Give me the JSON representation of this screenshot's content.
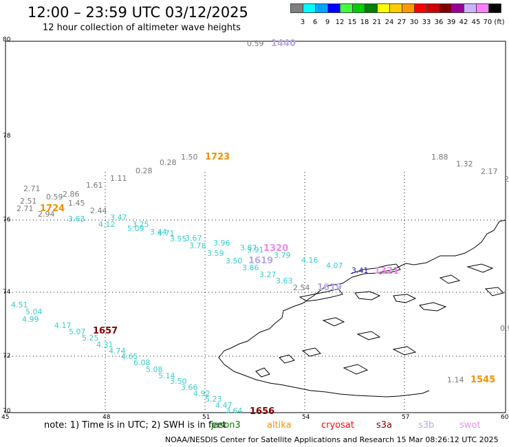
{
  "header": {
    "title": "12:00 – 23:59 UTC 03/12/2025",
    "subtitle": "12 hour collection of altimeter wave heights"
  },
  "legend": {
    "colors": [
      "#808080",
      "#00ffff",
      "#00a5ff",
      "#0000ff",
      "#40ff40",
      "#00cc00",
      "#008000",
      "#ffff00",
      "#ffcc00",
      "#ff9900",
      "#ff0000",
      "#cc0000",
      "#800000",
      "#990099",
      "#ccb3ff",
      "#ff80ff",
      "#000000"
    ],
    "labels": [
      "3",
      "6",
      "9",
      "12",
      "15",
      "18",
      "21",
      "24",
      "27",
      "30",
      "33",
      "36",
      "39",
      "42",
      "45",
      "70 (ft)"
    ]
  },
  "axes": {
    "lon_labels": [
      "45",
      "48",
      "51",
      "54",
      "57",
      "60"
    ],
    "lat_labels": [
      "80",
      "78",
      "76",
      "74",
      "72",
      "70"
    ]
  },
  "points": [
    {
      "t": "0.59",
      "c": "#777777"
    },
    {
      "t": "1440",
      "c": "#b9a8e8",
      "b": 1
    },
    {
      "t": "1.50",
      "c": "#777777"
    },
    {
      "t": "1723",
      "c": "#f09000",
      "b": 1
    },
    {
      "t": "0.28",
      "c": "#777777"
    },
    {
      "t": "0.28",
      "c": "#777777"
    },
    {
      "t": "1.11",
      "c": "#777777"
    },
    {
      "t": "1.61",
      "c": "#777777"
    },
    {
      "t": "2.71",
      "c": "#777777"
    },
    {
      "t": "2.51",
      "c": "#777777"
    },
    {
      "t": "0.59",
      "c": "#777777"
    },
    {
      "t": "2.86",
      "c": "#777777"
    },
    {
      "t": "1.45",
      "c": "#777777"
    },
    {
      "t": "2.71",
      "c": "#777777"
    },
    {
      "t": "1724",
      "c": "#f09000",
      "b": 1
    },
    {
      "t": "2.94",
      "c": "#777777"
    },
    {
      "t": "2.44",
      "c": "#777777"
    },
    {
      "t": "1.88",
      "c": "#777777"
    },
    {
      "t": "1.32",
      "c": "#777777"
    },
    {
      "t": "2.17",
      "c": "#777777"
    },
    {
      "t": "3.63",
      "c": "#33cccc"
    },
    {
      "t": "3.47",
      "c": "#33cccc"
    },
    {
      "t": "4.12",
      "c": "#33cccc"
    },
    {
      "t": "3.25",
      "c": "#33cccc"
    },
    {
      "t": "5.09",
      "c": "#33cccc"
    },
    {
      "t": "3.44",
      "c": "#33cccc"
    },
    {
      "t": "4.71",
      "c": "#33cccc"
    },
    {
      "t": "3.55",
      "c": "#33cccc"
    },
    {
      "t": "3.67",
      "c": "#33cccc"
    },
    {
      "t": "3.78",
      "c": "#33cccc"
    },
    {
      "t": "3.96",
      "c": "#33cccc"
    },
    {
      "t": "3.59",
      "c": "#33cccc"
    },
    {
      "t": "3.87",
      "c": "#33cccc"
    },
    {
      "t": "3.91",
      "c": "#33cccc"
    },
    {
      "t": "1320",
      "c": "#ee88ee",
      "b": 1
    },
    {
      "t": "3.79",
      "c": "#33cccc"
    },
    {
      "t": "3.50",
      "c": "#33cccc"
    },
    {
      "t": "1619",
      "c": "#b9a8e8",
      "b": 1
    },
    {
      "t": "3.86",
      "c": "#33cccc"
    },
    {
      "t": "3.27",
      "c": "#33cccc"
    },
    {
      "t": "3.63",
      "c": "#33cccc"
    },
    {
      "t": "4.16",
      "c": "#33cccc"
    },
    {
      "t": "4.07",
      "c": "#33cccc"
    },
    {
      "t": "2.54",
      "c": "#777777"
    },
    {
      "t": "1619",
      "c": "#b9a8e8",
      "b": 1
    },
    {
      "t": "3.41",
      "c": "#1a1aaa"
    },
    {
      "t": "1321",
      "c": "#ee88ee",
      "b": 1
    },
    {
      "t": "4.51",
      "c": "#33cccc"
    },
    {
      "t": "5.04",
      "c": "#33cccc"
    },
    {
      "t": "4.99",
      "c": "#33cccc"
    },
    {
      "t": "4.17",
      "c": "#33cccc"
    },
    {
      "t": "5.07",
      "c": "#33cccc"
    },
    {
      "t": "1657",
      "c": "#800000",
      "b": 1
    },
    {
      "t": "5.25",
      "c": "#33cccc"
    },
    {
      "t": "4.31",
      "c": "#33cccc"
    },
    {
      "t": "4.74",
      "c": "#33cccc"
    },
    {
      "t": "4.65",
      "c": "#33cccc"
    },
    {
      "t": "6.08",
      "c": "#33cccc"
    },
    {
      "t": "5.08",
      "c": "#33cccc"
    },
    {
      "t": "5.14",
      "c": "#33cccc"
    },
    {
      "t": "3.50",
      "c": "#33cccc"
    },
    {
      "t": "3.66",
      "c": "#33cccc"
    },
    {
      "t": "4.92",
      "c": "#33cccc"
    },
    {
      "t": "5.23",
      "c": "#33cccc"
    },
    {
      "t": "4.47",
      "c": "#33cccc"
    },
    {
      "t": "3.64",
      "c": "#33cccc"
    },
    {
      "t": "1656",
      "c": "#800000",
      "b": 1
    },
    {
      "t": "1.14",
      "c": "#777777"
    },
    {
      "t": "1545",
      "c": "#f09000",
      "b": 1
    },
    {
      "t": "0.9",
      "c": "#777777"
    },
    {
      "t": "2",
      "c": "#777777"
    }
  ],
  "note": "note:  1) Time is in UTC; 2) SWH is in feet",
  "satellites": [
    {
      "name": "jason3",
      "color": "#008000"
    },
    {
      "name": "altika",
      "color": "#f09000"
    },
    {
      "name": "cryosat",
      "color": "#ff0000"
    },
    {
      "name": "s3a",
      "color": "#800000"
    },
    {
      "name": "s3b",
      "color": "#b9a8e8"
    },
    {
      "name": "swot",
      "color": "#ee88ee"
    }
  ],
  "footer": "NOAA/NESDIS Center for Satellite Applications and Research    15 Mar 08:26:12 UTC 2025"
}
